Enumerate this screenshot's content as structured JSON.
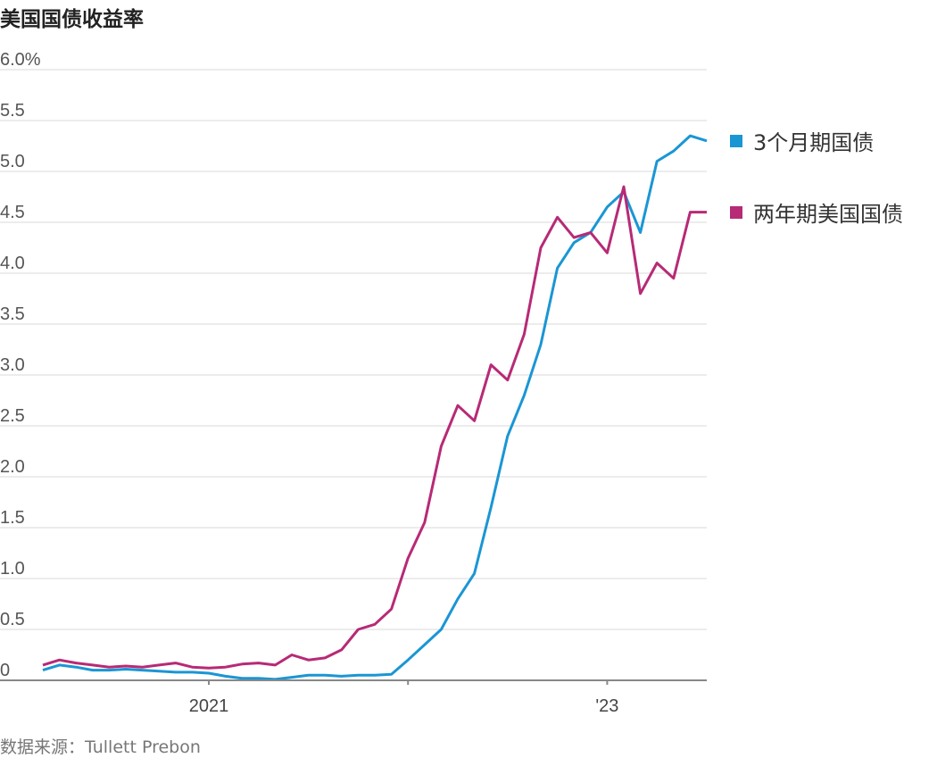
{
  "chart_data": {
    "type": "line",
    "title": "美国国债收益率",
    "source": "数据来源：Tullett Prebon",
    "y_unit_label": "6.0%",
    "y_tick_labels": [
      "0",
      "0.5",
      "1.0",
      "1.5",
      "2.0",
      "2.5",
      "3.0",
      "3.5",
      "4.0",
      "4.5",
      "5.0",
      "5.5"
    ],
    "ylim": [
      0,
      6.0
    ],
    "xlim": [
      "2020-03",
      "2023-07"
    ],
    "x_tick_labels": [
      {
        "label": "2021",
        "x": "2021-01"
      },
      {
        "label": "'23",
        "x": "2023-01"
      }
    ],
    "grid": true,
    "legend_position": "right",
    "series": [
      {
        "name": "3个月期国债",
        "color": "#1a96d4",
        "points": [
          [
            "2020-03",
            0.1
          ],
          [
            "2020-04",
            0.15
          ],
          [
            "2020-05",
            0.13
          ],
          [
            "2020-06",
            0.1
          ],
          [
            "2020-07",
            0.1
          ],
          [
            "2020-08",
            0.11
          ],
          [
            "2020-09",
            0.1
          ],
          [
            "2020-10",
            0.09
          ],
          [
            "2020-11",
            0.08
          ],
          [
            "2020-12",
            0.08
          ],
          [
            "2021-01",
            0.07
          ],
          [
            "2021-02",
            0.04
          ],
          [
            "2021-03",
            0.02
          ],
          [
            "2021-04",
            0.02
          ],
          [
            "2021-05",
            0.01
          ],
          [
            "2021-06",
            0.03
          ],
          [
            "2021-07",
            0.05
          ],
          [
            "2021-08",
            0.05
          ],
          [
            "2021-09",
            0.04
          ],
          [
            "2021-10",
            0.05
          ],
          [
            "2021-11",
            0.05
          ],
          [
            "2021-12",
            0.06
          ],
          [
            "2022-01",
            0.2
          ],
          [
            "2022-02",
            0.35
          ],
          [
            "2022-03",
            0.5
          ],
          [
            "2022-04",
            0.8
          ],
          [
            "2022-05",
            1.05
          ],
          [
            "2022-06",
            1.7
          ],
          [
            "2022-07",
            2.4
          ],
          [
            "2022-08",
            2.8
          ],
          [
            "2022-09",
            3.3
          ],
          [
            "2022-10",
            4.05
          ],
          [
            "2022-11",
            4.3
          ],
          [
            "2022-12",
            4.4
          ],
          [
            "2023-01",
            4.65
          ],
          [
            "2023-02",
            4.8
          ],
          [
            "2023-03",
            4.4
          ],
          [
            "2023-04",
            5.1
          ],
          [
            "2023-05",
            5.2
          ],
          [
            "2023-06",
            5.35
          ],
          [
            "2023-07",
            5.3
          ]
        ]
      },
      {
        "name": "两年期美国国债",
        "color": "#b72a76",
        "points": [
          [
            "2020-03",
            0.15
          ],
          [
            "2020-04",
            0.2
          ],
          [
            "2020-05",
            0.17
          ],
          [
            "2020-06",
            0.15
          ],
          [
            "2020-07",
            0.13
          ],
          [
            "2020-08",
            0.14
          ],
          [
            "2020-09",
            0.13
          ],
          [
            "2020-10",
            0.15
          ],
          [
            "2020-11",
            0.17
          ],
          [
            "2020-12",
            0.13
          ],
          [
            "2021-01",
            0.12
          ],
          [
            "2021-02",
            0.13
          ],
          [
            "2021-03",
            0.16
          ],
          [
            "2021-04",
            0.17
          ],
          [
            "2021-05",
            0.15
          ],
          [
            "2021-06",
            0.25
          ],
          [
            "2021-07",
            0.2
          ],
          [
            "2021-08",
            0.22
          ],
          [
            "2021-09",
            0.3
          ],
          [
            "2021-10",
            0.5
          ],
          [
            "2021-11",
            0.55
          ],
          [
            "2021-12",
            0.7
          ],
          [
            "2022-01",
            1.2
          ],
          [
            "2022-02",
            1.55
          ],
          [
            "2022-03",
            2.3
          ],
          [
            "2022-04",
            2.7
          ],
          [
            "2022-05",
            2.55
          ],
          [
            "2022-06",
            3.1
          ],
          [
            "2022-07",
            2.95
          ],
          [
            "2022-08",
            3.4
          ],
          [
            "2022-09",
            4.25
          ],
          [
            "2022-10",
            4.55
          ],
          [
            "2022-11",
            4.35
          ],
          [
            "2022-12",
            4.4
          ],
          [
            "2023-01",
            4.2
          ],
          [
            "2023-02",
            4.85
          ],
          [
            "2023-03",
            3.8
          ],
          [
            "2023-04",
            4.1
          ],
          [
            "2023-05",
            3.95
          ],
          [
            "2023-06",
            4.6
          ],
          [
            "2023-07",
            4.6
          ]
        ]
      }
    ]
  }
}
